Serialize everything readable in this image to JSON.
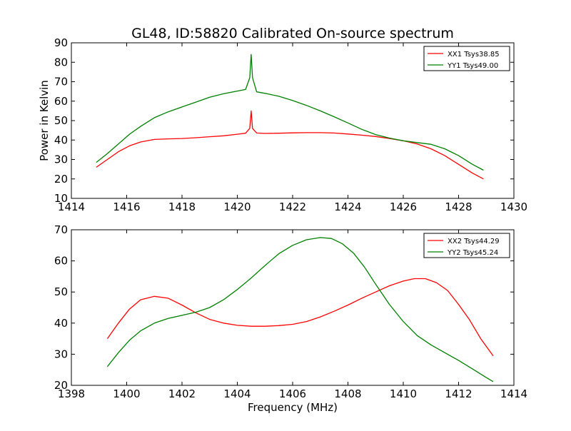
{
  "title": "GL48, ID:58820 Calibrated On-source spectrum",
  "chart_data": [
    {
      "type": "line",
      "title": "GL48, ID:58820 Calibrated On-source spectrum",
      "xlabel": "",
      "ylabel": "Power in Kelvin",
      "xlim": [
        1414,
        1430
      ],
      "ylim": [
        10,
        90
      ],
      "xticks": [
        1414,
        1416,
        1418,
        1420,
        1422,
        1424,
        1426,
        1428,
        1430
      ],
      "yticks": [
        10,
        20,
        30,
        40,
        50,
        60,
        70,
        80,
        90
      ],
      "grid": false,
      "legend_position": "top-right",
      "series": [
        {
          "name": "XX1 Tsys38.85",
          "color": "#ff0000",
          "x": [
            1414.9,
            1415.3,
            1415.7,
            1416.1,
            1416.5,
            1417.0,
            1417.5,
            1418.0,
            1418.5,
            1419.0,
            1419.5,
            1420.0,
            1420.3,
            1420.45,
            1420.5,
            1420.55,
            1420.7,
            1421.0,
            1421.5,
            1422.0,
            1422.5,
            1423.0,
            1423.5,
            1424.0,
            1424.5,
            1425.0,
            1425.5,
            1426.0,
            1426.5,
            1427.0,
            1427.5,
            1428.0,
            1428.5,
            1428.9
          ],
          "y": [
            26,
            30,
            34,
            37,
            39,
            40.3,
            40.6,
            40.8,
            41.2,
            41.7,
            42.2,
            43,
            43.5,
            46,
            55,
            46,
            43.6,
            43.4,
            43.5,
            43.7,
            43.8,
            43.8,
            43.6,
            43.1,
            42.5,
            41.8,
            40.8,
            39.6,
            38,
            35.5,
            32,
            27.5,
            23,
            20
          ]
        },
        {
          "name": "YY1 Tsys49.00",
          "color": "#008000",
          "x": [
            1414.9,
            1415.3,
            1415.7,
            1416.1,
            1416.5,
            1417.0,
            1417.5,
            1418.0,
            1418.5,
            1419.0,
            1419.5,
            1420.0,
            1420.3,
            1420.45,
            1420.5,
            1420.55,
            1420.7,
            1421.0,
            1421.5,
            1422.0,
            1422.5,
            1423.0,
            1423.5,
            1424.0,
            1424.5,
            1425.0,
            1425.5,
            1426.0,
            1426.5,
            1427.0,
            1427.5,
            1428.0,
            1428.5,
            1428.9
          ],
          "y": [
            28.5,
            33,
            38,
            43,
            47,
            51.5,
            54.5,
            57,
            59.5,
            62,
            63.8,
            65.2,
            66,
            72,
            84,
            72,
            64.8,
            64,
            62.5,
            60.3,
            57.8,
            55,
            52,
            48.8,
            45.5,
            42.8,
            41,
            39.6,
            38.7,
            37.8,
            35.5,
            32,
            27.5,
            24.5
          ]
        }
      ]
    },
    {
      "type": "line",
      "title": "",
      "xlabel": "Frequency (MHz)",
      "ylabel": "",
      "xlim": [
        1398,
        1414
      ],
      "ylim": [
        20,
        70
      ],
      "xticks": [
        1398,
        1400,
        1402,
        1404,
        1406,
        1408,
        1410,
        1412,
        1414
      ],
      "yticks": [
        20,
        30,
        40,
        50,
        60,
        70
      ],
      "grid": false,
      "legend_position": "top-right",
      "series": [
        {
          "name": "XX2 Tsys44.29",
          "color": "#ff0000",
          "x": [
            1399.3,
            1399.7,
            1400.1,
            1400.5,
            1401.0,
            1401.5,
            1402.0,
            1402.5,
            1403.0,
            1403.5,
            1404.0,
            1404.5,
            1405.0,
            1405.5,
            1406.0,
            1406.5,
            1407.0,
            1407.5,
            1408.0,
            1408.5,
            1409.0,
            1409.5,
            1410.0,
            1410.4,
            1410.8,
            1411.2,
            1411.6,
            1412.0,
            1412.4,
            1412.8,
            1413.25
          ],
          "y": [
            35,
            40,
            44.5,
            47.5,
            48.6,
            48,
            45.8,
            43.3,
            41.2,
            40,
            39.3,
            39,
            39,
            39.2,
            39.6,
            40.5,
            42,
            43.8,
            45.8,
            48,
            50,
            52,
            53.5,
            54.3,
            54.3,
            53,
            50.5,
            46,
            41,
            35,
            29.5
          ]
        },
        {
          "name": "YY2 Tsys45.24",
          "color": "#008000",
          "x": [
            1399.3,
            1399.7,
            1400.1,
            1400.5,
            1401.0,
            1401.5,
            1402.0,
            1402.5,
            1403.0,
            1403.5,
            1404.0,
            1404.5,
            1405.0,
            1405.5,
            1406.0,
            1406.5,
            1407.0,
            1407.4,
            1407.8,
            1408.2,
            1408.6,
            1409.0,
            1409.5,
            1410.0,
            1410.5,
            1411.0,
            1411.5,
            1412.0,
            1412.5,
            1413.0,
            1413.25
          ],
          "y": [
            26,
            30.5,
            34.5,
            37.5,
            40,
            41.5,
            42.5,
            43.5,
            45,
            47.5,
            50.8,
            54.5,
            58.5,
            62.3,
            65,
            66.8,
            67.5,
            67.2,
            65.5,
            62.5,
            58,
            52.5,
            46,
            40.5,
            36,
            33,
            30.5,
            28,
            25.3,
            22.5,
            21.2
          ]
        }
      ]
    }
  ]
}
